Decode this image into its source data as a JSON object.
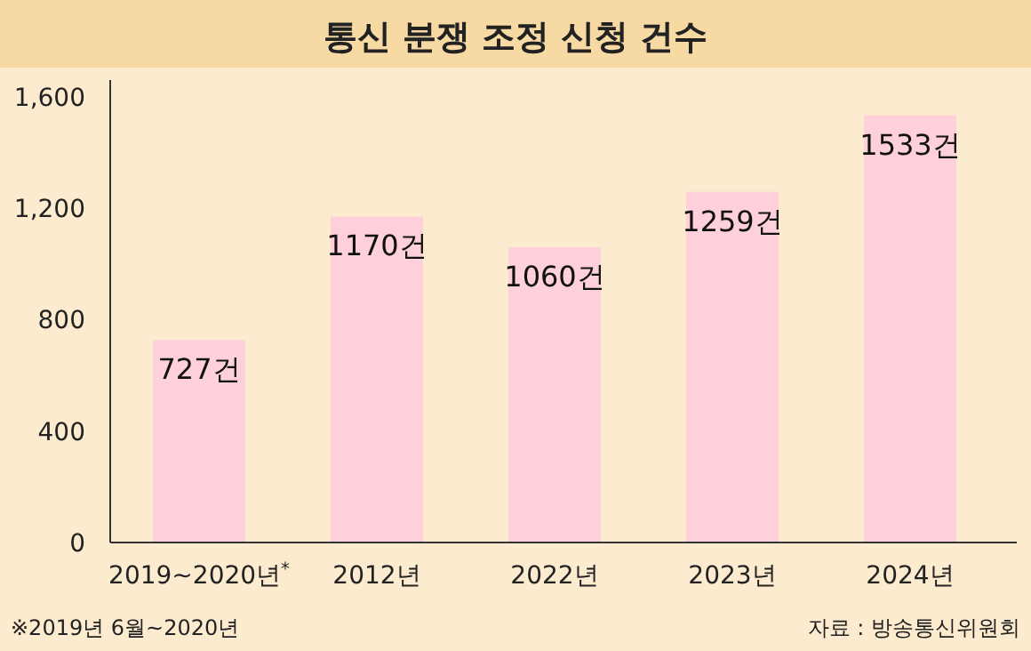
{
  "chart_data": {
    "type": "bar",
    "title": "통신 분쟁 조정 신청 건수",
    "categories": [
      "2019~2020년$^{*}$",
      "2012년",
      "2022년",
      "2023년",
      "2024년"
    ],
    "values": [
      727,
      1170,
      1060,
      1259,
      1533
    ],
    "value_labels": [
      "727건",
      "1170건",
      "1060건",
      "1259건",
      "1533건"
    ],
    "color": "#fdd0da",
    "ylim": [
      0,
      1660
    ],
    "yticks": [
      0,
      {
        "value": 400,
        "label": "400"
      },
      {
        "value": 800,
        "label": "800"
      },
      {
        "value": 1200,
        "label": "1,200"
      },
      {
        "value": 1600,
        "label": "1,600"
      }
    ],
    "annotations": [
      "※2019년 6월~2020년",
      "자료 : 방송통신위원회"
    ]
  }
}
